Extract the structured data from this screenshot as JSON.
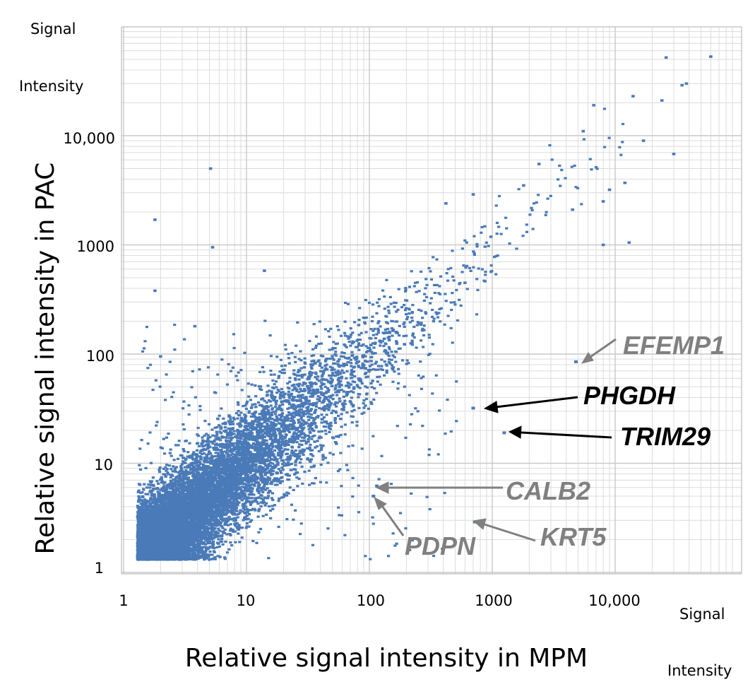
{
  "chart_data": {
    "type": "scatter",
    "title": "",
    "xlabel": "Relative signal intensity in MPM",
    "ylabel": "Relative signal intensity in PAC",
    "x_scale": "log",
    "y_scale": "log",
    "xlim": [
      1,
      80000
    ],
    "ylim": [
      1,
      70000
    ],
    "grid": true,
    "x_unit_label": [
      "Signal",
      "Intensity"
    ],
    "y_unit_label": [
      "Signal",
      "Intensity"
    ],
    "x_ticks": [
      {
        "value": 1,
        "label": "1"
      },
      {
        "value": 10,
        "label": "10"
      },
      {
        "value": 100,
        "label": "100"
      },
      {
        "value": 1000,
        "label": "1000"
      },
      {
        "value": 10000,
        "label": "10,000"
      }
    ],
    "y_ticks": [
      {
        "value": 1,
        "label": "1"
      },
      {
        "value": 10,
        "label": "10"
      },
      {
        "value": 100,
        "label": "100"
      },
      {
        "value": 1000,
        "label": "1000"
      },
      {
        "value": 10000,
        "label": "10,000"
      }
    ],
    "point_color": "#4a7ab7",
    "approx_point_count": 12000,
    "highlighted_genes": [
      {
        "name": "EFEMP1",
        "x": 4800,
        "y": 85,
        "color": "#808080"
      },
      {
        "name": "PHGDH",
        "x": 700,
        "y": 32,
        "color": "#000000"
      },
      {
        "name": "TRIM29",
        "x": 1250,
        "y": 19,
        "color": "#000000"
      },
      {
        "name": "CALB2",
        "x": 115,
        "y": 6.2,
        "color": "#808080"
      },
      {
        "name": "PDPN",
        "x": 108,
        "y": 5.0,
        "color": "#808080"
      },
      {
        "name": "KRT5",
        "x": 720,
        "y": 2.9,
        "color": "#808080"
      }
    ],
    "outlier_points": [
      [
        5.1,
        5000
      ],
      [
        1.8,
        1700
      ],
      [
        5.3,
        950
      ],
      [
        14,
        580
      ],
      [
        1.8,
        380
      ],
      [
        3.8,
        180
      ],
      [
        2,
        95
      ],
      [
        26000,
        52000
      ],
      [
        60000,
        53000
      ],
      [
        38000,
        30000
      ],
      [
        35000,
        29000
      ],
      [
        24000,
        21000
      ],
      [
        14000,
        23000
      ],
      [
        30000,
        6800
      ],
      [
        13000,
        1050
      ],
      [
        700,
        2900
      ],
      [
        2400,
        5500
      ],
      [
        5500,
        11000
      ],
      [
        6700,
        19000
      ],
      [
        1800,
        3500
      ],
      [
        17000,
        9000
      ],
      [
        420,
        2400
      ],
      [
        8000,
        1000
      ],
      [
        4500,
        2100
      ],
      [
        8000,
        2500
      ],
      [
        600,
        450
      ],
      [
        9000,
        3200
      ],
      [
        12000,
        3700
      ]
    ]
  }
}
